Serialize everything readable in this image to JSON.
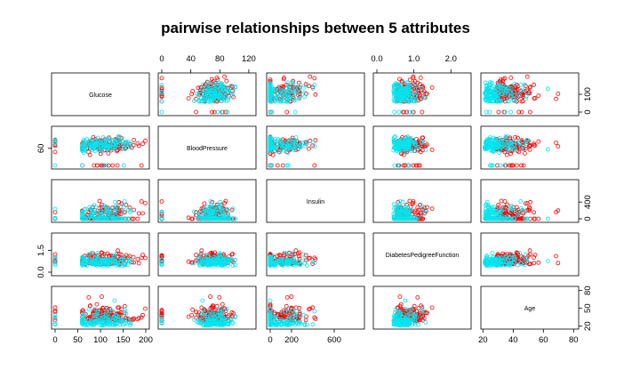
{
  "chart_data": {
    "type": "scatter-matrix",
    "title": "pairwise relationships between 5 attributes",
    "variables": [
      {
        "name": "Glucose",
        "range": [
          0,
          200
        ],
        "ticks": [
          0,
          50,
          100,
          150,
          200
        ],
        "tick_labels": [
          "0",
          "50",
          "100",
          "150",
          "200"
        ]
      },
      {
        "name": "BloodPressure",
        "range": [
          0,
          125
        ],
        "ticks": [
          0,
          40,
          80,
          120
        ],
        "tick_labels": [
          "0",
          "40",
          "80",
          "120"
        ]
      },
      {
        "name": "Insulin",
        "range": [
          0,
          850
        ],
        "ticks": [
          0,
          200,
          600
        ],
        "tick_labels": [
          "0",
          "200",
          "600"
        ]
      },
      {
        "name": "DiabetesPedigreeFunction",
        "range": [
          0,
          2.45
        ],
        "ticks": [
          0.0,
          1.0,
          2.0
        ],
        "tick_labels": [
          "0.0",
          "1.0",
          "2.0"
        ]
      },
      {
        "name": "Age",
        "range": [
          21,
          81
        ],
        "ticks": [
          20,
          40,
          60,
          80
        ],
        "tick_labels": [
          "20",
          "40",
          "60",
          "80"
        ]
      }
    ],
    "left_axis_ticks": {
      "BloodPressure": {
        "ticks": [
          60
        ],
        "tick_labels": [
          "60"
        ]
      },
      "DiabetesPedigreeFunction": {
        "ticks": [
          0.0,
          1.5
        ],
        "tick_labels": [
          "0.0",
          "1.5"
        ]
      }
    },
    "right_axis_ticks": {
      "Glucose": {
        "ticks": [
          0,
          100
        ],
        "tick_labels": [
          "0",
          "100"
        ]
      },
      "Insulin": {
        "ticks": [
          0,
          400
        ],
        "tick_labels": [
          "0",
          "400"
        ]
      },
      "Age": {
        "ticks": [
          20,
          50,
          80
        ],
        "tick_labels": [
          "20",
          "50",
          "80"
        ]
      }
    },
    "groups": [
      {
        "color": "#ff0000"
      },
      {
        "color": "#00e5ee"
      }
    ],
    "points_per_group": 140,
    "seed": 7
  }
}
